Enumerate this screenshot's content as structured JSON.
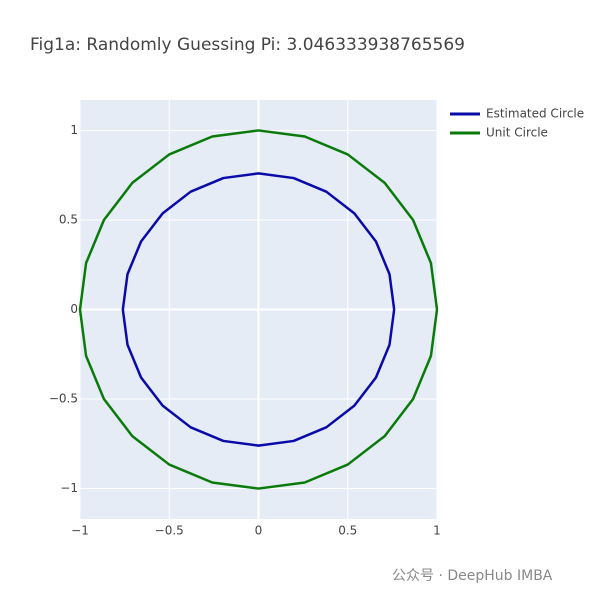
{
  "chart_data": {
    "type": "line",
    "title": "Fig1a: Randomly Guessing Pi: 3.046333938765569",
    "xlim": [
      -1,
      1
    ],
    "ylim": [
      -1.17,
      1.17
    ],
    "xticks": [
      {
        "value": -1,
        "label": "−1"
      },
      {
        "value": -0.5,
        "label": "−0.5"
      },
      0,
      0.5,
      1
    ],
    "yticks": [
      {
        "value": -1,
        "label": "−1"
      },
      {
        "value": -0.5,
        "label": "−0.5"
      },
      0,
      0.5,
      1
    ],
    "grid": true,
    "legend": "top-right",
    "series": [
      {
        "name": "Estimated Circle",
        "color": "#0a0aa8",
        "x": [
          0.76,
          0.734,
          0.658,
          0.537,
          0.38,
          0.197,
          0,
          -0.197,
          -0.38,
          -0.537,
          -0.658,
          -0.734,
          -0.76,
          -0.734,
          -0.658,
          -0.537,
          -0.38,
          -0.197,
          0,
          0.197,
          0.38,
          0.537,
          0.658,
          0.734,
          0.76
        ],
        "y": [
          0,
          0.197,
          0.38,
          0.537,
          0.658,
          0.734,
          0.76,
          0.734,
          0.658,
          0.537,
          0.38,
          0.197,
          0,
          -0.197,
          -0.38,
          -0.537,
          -0.658,
          -0.734,
          -0.76,
          -0.734,
          -0.658,
          -0.537,
          -0.38,
          -0.197,
          0
        ]
      },
      {
        "name": "Unit Circle",
        "color": "#0a7a0a",
        "x": [
          1,
          0.966,
          0.866,
          0.707,
          0.5,
          0.259,
          0,
          -0.259,
          -0.5,
          -0.707,
          -0.866,
          -0.966,
          -1,
          -0.966,
          -0.866,
          -0.707,
          -0.5,
          -0.259,
          0,
          0.259,
          0.5,
          0.707,
          0.866,
          0.966,
          1
        ],
        "y": [
          0,
          0.259,
          0.5,
          0.707,
          0.866,
          0.966,
          1,
          0.966,
          0.866,
          0.707,
          0.5,
          0.259,
          0,
          -0.259,
          -0.5,
          -0.707,
          -0.866,
          -0.966,
          -1,
          -0.966,
          -0.866,
          -0.707,
          -0.5,
          -0.259,
          0
        ]
      }
    ]
  },
  "watermark": "公众号 · DeepHub IMBA"
}
